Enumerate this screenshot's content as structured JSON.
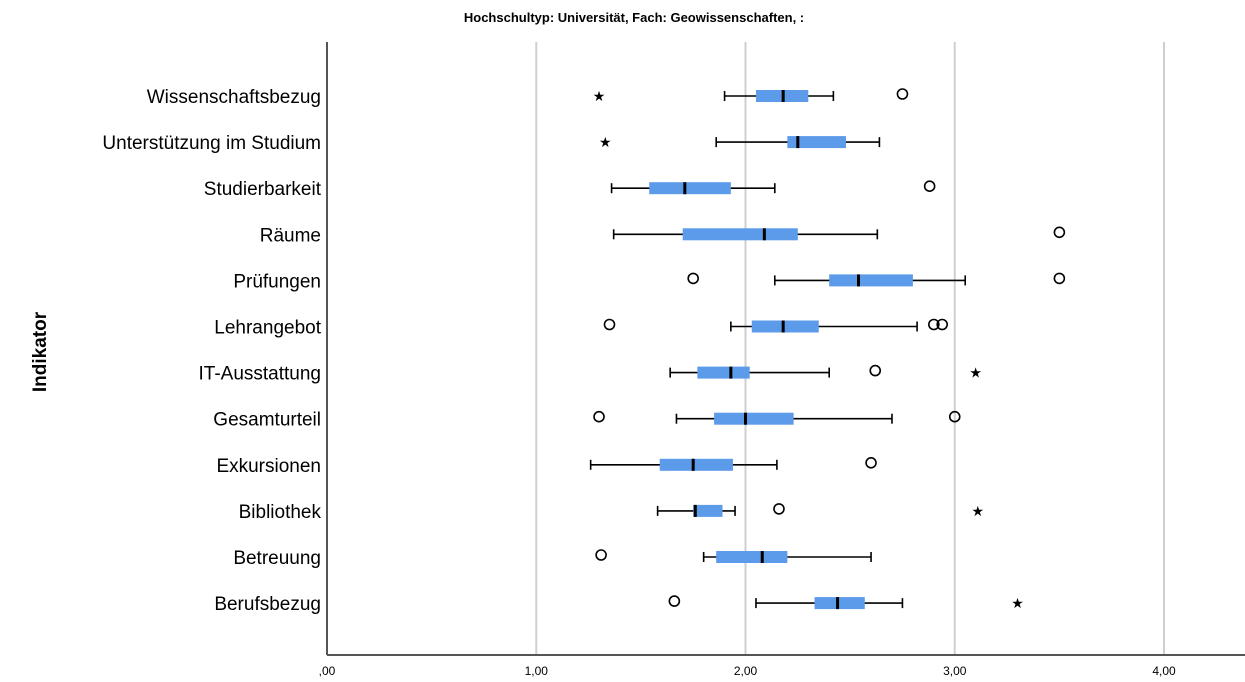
{
  "chart_data": {
    "type": "boxplot",
    "orientation": "horizontal",
    "title": "Hochschultyp: Universität, Fach: Geowissenschaften,  :",
    "ylabel": "Indikator",
    "xlabel": "",
    "xlim": [
      0,
      4.4
    ],
    "xticks": [
      0,
      1,
      2,
      3,
      4
    ],
    "xtick_labels": [
      ",00",
      "1,00",
      "2,00",
      "3,00",
      "4,00"
    ],
    "grid": "vertical",
    "box_color": "#5b9bea",
    "categories": [
      {
        "label": "Wissenschaftsbezug",
        "whisker_low": 1.9,
        "q1": 2.05,
        "median": 2.18,
        "q3": 2.3,
        "whisker_high": 2.42,
        "outliers": [
          2.75
        ],
        "extremes": [
          1.3
        ]
      },
      {
        "label": "Unterstützung im Studium",
        "whisker_low": 1.86,
        "q1": 2.2,
        "median": 2.25,
        "q3": 2.48,
        "whisker_high": 2.64,
        "outliers": [],
        "extremes": [
          1.33
        ]
      },
      {
        "label": "Studierbarkeit",
        "whisker_low": 1.36,
        "q1": 1.54,
        "median": 1.71,
        "q3": 1.93,
        "whisker_high": 2.14,
        "outliers": [
          2.88
        ],
        "extremes": []
      },
      {
        "label": "Räume",
        "whisker_low": 1.37,
        "q1": 1.7,
        "median": 2.09,
        "q3": 2.25,
        "whisker_high": 2.63,
        "outliers": [
          3.5
        ],
        "extremes": []
      },
      {
        "label": "Prüfungen",
        "whisker_low": 2.14,
        "q1": 2.4,
        "median": 2.54,
        "q3": 2.8,
        "whisker_high": 3.05,
        "outliers": [
          1.75,
          3.5
        ],
        "extremes": []
      },
      {
        "label": "Lehrangebot",
        "whisker_low": 1.93,
        "q1": 2.03,
        "median": 2.18,
        "q3": 2.35,
        "whisker_high": 2.82,
        "outliers": [
          1.35,
          2.9,
          2.94
        ],
        "extremes": []
      },
      {
        "label": "IT-Ausstattung",
        "whisker_low": 1.64,
        "q1": 1.77,
        "median": 1.93,
        "q3": 2.02,
        "whisker_high": 2.4,
        "outliers": [
          2.62
        ],
        "extremes": [
          3.1
        ]
      },
      {
        "label": "Gesamturteil",
        "whisker_low": 1.67,
        "q1": 1.85,
        "median": 2.0,
        "q3": 2.23,
        "whisker_high": 2.7,
        "outliers": [
          1.3,
          3.0
        ],
        "extremes": []
      },
      {
        "label": "Exkursionen",
        "whisker_low": 1.26,
        "q1": 1.59,
        "median": 1.75,
        "q3": 1.94,
        "whisker_high": 2.15,
        "outliers": [
          2.6
        ],
        "extremes": []
      },
      {
        "label": "Bibliothek",
        "whisker_low": 1.58,
        "q1": 1.75,
        "median": 1.76,
        "q3": 1.89,
        "whisker_high": 1.95,
        "outliers": [
          2.16
        ],
        "extremes": [
          3.11
        ]
      },
      {
        "label": "Betreuung",
        "whisker_low": 1.8,
        "q1": 1.86,
        "median": 2.08,
        "q3": 2.2,
        "whisker_high": 2.6,
        "outliers": [
          1.31
        ],
        "extremes": []
      },
      {
        "label": "Berufsbezug",
        "whisker_low": 2.05,
        "q1": 2.33,
        "median": 2.44,
        "q3": 2.57,
        "whisker_high": 2.75,
        "outliers": [
          1.66
        ],
        "extremes": [
          3.3
        ]
      }
    ]
  }
}
